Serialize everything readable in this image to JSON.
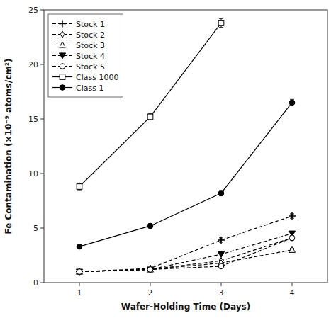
{
  "chart_data": {
    "type": "line",
    "x": [
      1,
      2,
      3,
      4
    ],
    "series": [
      {
        "name": "Stock 1",
        "color": "#000000",
        "marker": "plus",
        "line_style": "dashed",
        "values": [
          1.0,
          1.3,
          3.9,
          6.1
        ],
        "errors": [
          0.1,
          0.1,
          0.2,
          0.2
        ]
      },
      {
        "name": "Stock 2",
        "color": "#000000",
        "marker": "diamond-open",
        "line_style": "dashed",
        "values": [
          1.0,
          1.2,
          2.0,
          4.1
        ],
        "errors": [
          0.1,
          0.1,
          0.15,
          0.2
        ]
      },
      {
        "name": "Stock 3",
        "color": "#000000",
        "marker": "triangle-up-open",
        "line_style": "dashed",
        "values": [
          1.0,
          1.2,
          1.8,
          3.0
        ],
        "errors": [
          0.1,
          0.1,
          0.1,
          0.15
        ]
      },
      {
        "name": "Stock 4",
        "color": "#000000",
        "marker": "triangle-down",
        "line_style": "dashed",
        "values": [
          1.0,
          1.2,
          2.6,
          4.5
        ],
        "errors": [
          0.1,
          0.1,
          0.15,
          0.2
        ]
      },
      {
        "name": "Stock 5",
        "color": "#000000",
        "marker": "circle-open",
        "line_style": "dashed",
        "values": [
          1.0,
          1.2,
          1.5,
          4.1
        ],
        "errors": [
          0.1,
          0.1,
          0.1,
          0.15
        ]
      },
      {
        "name": "Class 1000",
        "color": "#000000",
        "marker": "square-open",
        "line_style": "solid",
        "values": [
          8.8,
          15.2,
          23.8,
          null
        ],
        "errors": [
          0.3,
          0.3,
          0.4,
          null
        ]
      },
      {
        "name": "Class 1",
        "color": "#000000",
        "marker": "circle",
        "line_style": "solid",
        "values": [
          3.3,
          5.2,
          8.2,
          16.5
        ],
        "errors": [
          0.15,
          0.2,
          0.25,
          0.3
        ]
      }
    ],
    "xlabel": "Wafer-Holding Time (Days)",
    "ylabel": "Fe Contamination (×10⁻⁹ atoms/cm²)",
    "xlim": [
      0.5,
      4.5
    ],
    "ylim": [
      0,
      25
    ],
    "xticks": [
      1,
      2,
      3,
      4
    ],
    "yticks": [
      0,
      5,
      10,
      15,
      20,
      25
    ],
    "legend": "upper left",
    "grid": false
  }
}
